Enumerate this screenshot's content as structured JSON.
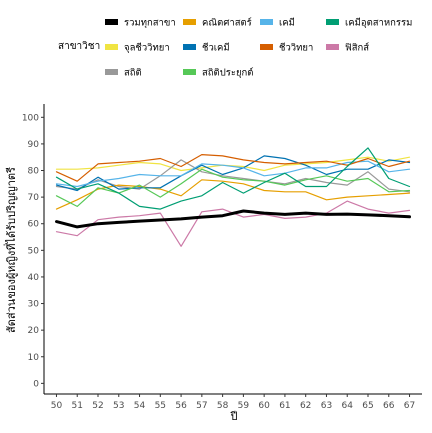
{
  "chart_data": {
    "type": "line",
    "title": "",
    "xlabel": "ปี",
    "ylabel": "สัดส่วนของผู้หญิงที่ได้รับปริญญาตรี",
    "legend_title": "สาขาวิชา",
    "legend_position": "top",
    "x": [
      50,
      51,
      52,
      53,
      54,
      55,
      56,
      57,
      58,
      59,
      60,
      61,
      62,
      63,
      64,
      65,
      66,
      67
    ],
    "xlim": [
      49.4,
      67.6
    ],
    "ylim": [
      -4,
      105
    ],
    "yticks": [
      0,
      10,
      20,
      30,
      40,
      50,
      60,
      70,
      80,
      90,
      100
    ],
    "grid": false,
    "series": [
      {
        "name": "รวมทุกสาขา",
        "color": "#000000",
        "width": 3.0,
        "values": [
          60.8,
          58.8,
          60.0,
          60.5,
          61.0,
          61.4,
          61.8,
          62.5,
          63.0,
          64.8,
          64.0,
          63.5,
          64.0,
          63.5,
          63.6,
          63.3,
          63.0,
          62.6
        ]
      },
      {
        "name": "จุลชีววิทยา",
        "color": "#f0e442",
        "width": 1.2,
        "values": [
          80.5,
          80.5,
          81.0,
          82.0,
          83.0,
          82.5,
          80.0,
          81.0,
          82.0,
          81.5,
          80.0,
          82.0,
          82.5,
          83.0,
          84.0,
          85.0,
          83.5,
          85.0
        ]
      },
      {
        "name": "สถิติ",
        "color": "#999999",
        "width": 1.2,
        "values": [
          74.0,
          73.0,
          76.5,
          74.0,
          73.0,
          78.0,
          84.0,
          79.5,
          78.0,
          77.0,
          76.0,
          75.0,
          77.0,
          75.5,
          74.5,
          79.5,
          73.0,
          72.0
        ]
      },
      {
        "name": "คณิตศาสตร์",
        "color": "#e69f00",
        "width": 1.2,
        "values": [
          65.5,
          69.0,
          73.0,
          74.5,
          74.0,
          73.0,
          70.5,
          76.5,
          76.0,
          75.0,
          72.5,
          72.0,
          72.0,
          69.0,
          70.0,
          70.5,
          71.0,
          71.5
        ]
      },
      {
        "name": "ชีวเคมี",
        "color": "#0072b2",
        "width": 1.2,
        "values": [
          74.5,
          72.5,
          77.5,
          73.0,
          73.5,
          73.5,
          78.0,
          82.0,
          78.5,
          81.0,
          85.5,
          84.5,
          82.0,
          78.5,
          80.5,
          80.5,
          84.0,
          83.0
        ]
      },
      {
        "name": "สถิติประยุกต์",
        "color": "#56c857",
        "width": 1.2,
        "values": [
          70.5,
          66.5,
          73.5,
          71.5,
          74.5,
          70.0,
          75.0,
          80.5,
          77.5,
          76.5,
          76.0,
          74.5,
          76.5,
          78.0,
          76.0,
          77.0,
          72.0,
          72.5
        ]
      },
      {
        "name": "เคมี",
        "color": "#56b4e9",
        "width": 1.2,
        "values": [
          75.0,
          74.0,
          76.0,
          77.0,
          78.5,
          78.0,
          78.0,
          82.5,
          82.0,
          81.0,
          78.0,
          79.0,
          81.0,
          81.0,
          83.0,
          83.5,
          79.5,
          80.5
        ]
      },
      {
        "name": "ชีววิทยา",
        "color": "#d55e00",
        "width": 1.2,
        "values": [
          79.5,
          76.0,
          82.5,
          83.0,
          83.5,
          84.5,
          81.5,
          86.0,
          85.5,
          84.0,
          83.0,
          82.5,
          83.0,
          83.5,
          82.0,
          84.5,
          81.5,
          83.5
        ]
      },
      {
        "name": "เคมีอุตสาหกรรม",
        "color": "#009e73",
        "width": 1.2,
        "values": [
          77.5,
          73.0,
          75.0,
          71.5,
          66.5,
          65.5,
          68.5,
          70.5,
          75.5,
          71.5,
          75.5,
          79.0,
          74.0,
          74.0,
          81.5,
          88.5,
          77.0,
          74.0
        ]
      },
      {
        "name": "ฟิสิกส์",
        "color": "#cc79a7",
        "width": 1.2,
        "values": [
          57.0,
          55.5,
          61.5,
          62.5,
          63.0,
          64.0,
          51.5,
          64.5,
          65.5,
          62.5,
          63.5,
          62.0,
          62.5,
          64.0,
          68.5,
          65.5,
          64.0,
          65.0
        ]
      }
    ],
    "legend_layout": [
      "รวมทุกสาขา",
      "คณิตศาสตร์",
      "เคมี",
      "เคมีอุตสาหกรรม",
      "จุลชีววิทยา",
      "ชีวเคมี",
      "ชีววิทยา",
      "ฟิสิกส์",
      "สถิติ",
      "สถิติประยุกต์"
    ]
  }
}
